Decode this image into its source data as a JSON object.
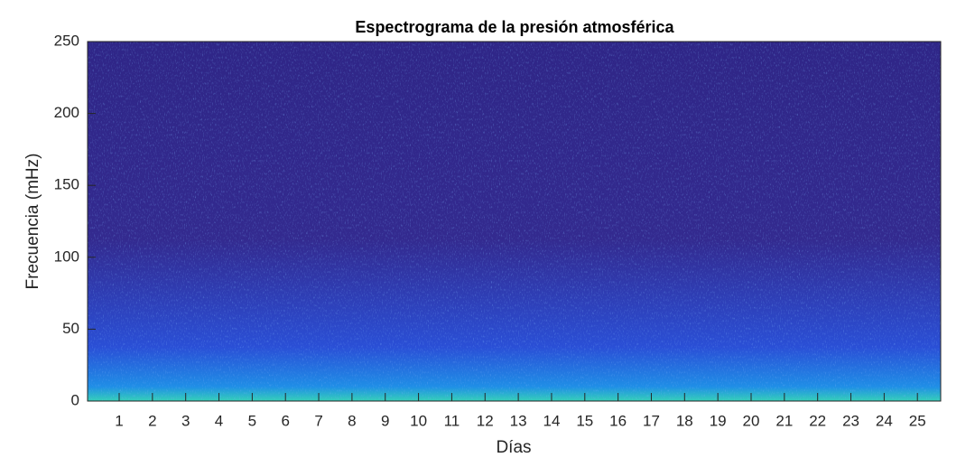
{
  "chart_data": {
    "type": "spectrogram",
    "title": "Espectrograma de la presión atmosférica",
    "xlabel": "Días",
    "ylabel": "Frecuencia (mHz)",
    "xlim": [
      0.05,
      25.7
    ],
    "ylim": [
      0,
      250
    ],
    "xticks": [
      1,
      2,
      3,
      4,
      5,
      6,
      7,
      8,
      9,
      10,
      11,
      12,
      13,
      14,
      15,
      16,
      17,
      18,
      19,
      20,
      21,
      22,
      23,
      24,
      25
    ],
    "yticks": [
      0,
      50,
      100,
      150,
      200,
      250
    ],
    "colormap": [
      "#34d0b8",
      "#1f8ee6",
      "#2a4fd6",
      "#332a8f",
      "#2f2687"
    ],
    "grid": false
  }
}
